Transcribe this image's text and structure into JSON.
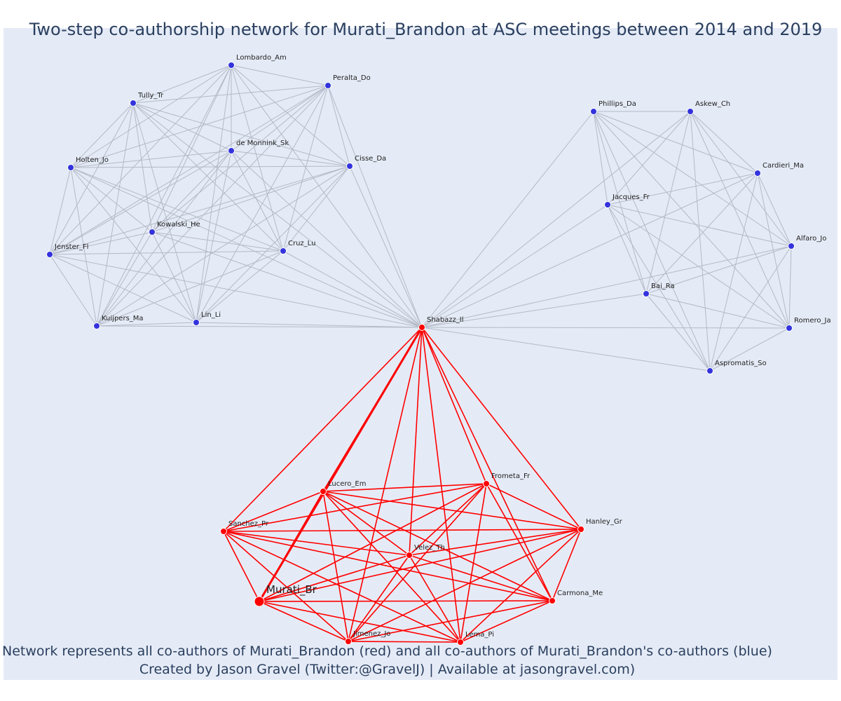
{
  "title": "Two-step co-authorship network for Murati_Brandon at ASC meetings between 2014 and 2019",
  "footer_line1": "Network represents all co-authors of Murati_Brandon (red) and all co-authors of Murati_Brandon's co-authors (blue)",
  "footer_line2": "Created by Jason Gravel (Twitter:@GravelJ) | Available at jasongravel.com)",
  "colors": {
    "background": "#e5ebf6",
    "red_node": "#ff0000",
    "blue_node": "#3333dd",
    "red_edge": "#ff0000",
    "gray_edge": "#b4b9c6",
    "text": "#2a3f5f"
  },
  "nodes": [
    {
      "id": "Murati_Br",
      "group": "ego"
    },
    {
      "id": "Shabazz_Il",
      "group": "red"
    },
    {
      "id": "Lucero_Em",
      "group": "red"
    },
    {
      "id": "Frometa_Fr",
      "group": "red"
    },
    {
      "id": "Sanchez_Pr",
      "group": "red"
    },
    {
      "id": "Hanley_Gr",
      "group": "red"
    },
    {
      "id": "Velez_Th",
      "group": "red"
    },
    {
      "id": "Carmona_Me",
      "group": "red"
    },
    {
      "id": "Jimenez_Jo",
      "group": "red"
    },
    {
      "id": "Lema_Pi",
      "group": "red"
    },
    {
      "id": "Lombardo_Am",
      "group": "blue"
    },
    {
      "id": "Peralta_Do",
      "group": "blue"
    },
    {
      "id": "Tully_Tr",
      "group": "blue"
    },
    {
      "id": "de Monnink_Sk",
      "group": "blue"
    },
    {
      "id": "Holten_Jo",
      "group": "blue"
    },
    {
      "id": "Cisse_Da",
      "group": "blue"
    },
    {
      "id": "Kowalski_He",
      "group": "blue"
    },
    {
      "id": "Jenster_Fl",
      "group": "blue"
    },
    {
      "id": "Cruz_Lu",
      "group": "blue"
    },
    {
      "id": "Kuijpers_Ma",
      "group": "blue"
    },
    {
      "id": "Lin_Li",
      "group": "blue"
    },
    {
      "id": "Phillips_Da",
      "group": "blue"
    },
    {
      "id": "Askew_Ch",
      "group": "blue"
    },
    {
      "id": "Cardieri_Ma",
      "group": "blue"
    },
    {
      "id": "Jacques_Fr",
      "group": "blue"
    },
    {
      "id": "Alfaro_Jo",
      "group": "blue"
    },
    {
      "id": "Bai_Ra",
      "group": "blue"
    },
    {
      "id": "Romero_Ja",
      "group": "blue"
    },
    {
      "id": "Aspromatis_So",
      "group": "blue"
    }
  ],
  "clusters": {
    "red": [
      "Murati_Br",
      "Shabazz_Il",
      "Lucero_Em",
      "Frometa_Fr",
      "Sanchez_Pr",
      "Hanley_Gr",
      "Velez_Th",
      "Carmona_Me",
      "Jimenez_Jo",
      "Lema_Pi"
    ],
    "left": [
      "Shabazz_Il",
      "Lombardo_Am",
      "Peralta_Do",
      "Tully_Tr",
      "de Monnink_Sk",
      "Holten_Jo",
      "Cisse_Da",
      "Kowalski_He",
      "Jenster_Fl",
      "Cruz_Lu",
      "Kuijpers_Ma",
      "Lin_Li"
    ],
    "right": [
      "Shabazz_Il",
      "Phillips_Da",
      "Askew_Ch",
      "Cardieri_Ma",
      "Jacques_Fr",
      "Alfaro_Jo",
      "Bai_Ra",
      "Romero_Ja",
      "Aspromatis_So"
    ]
  }
}
